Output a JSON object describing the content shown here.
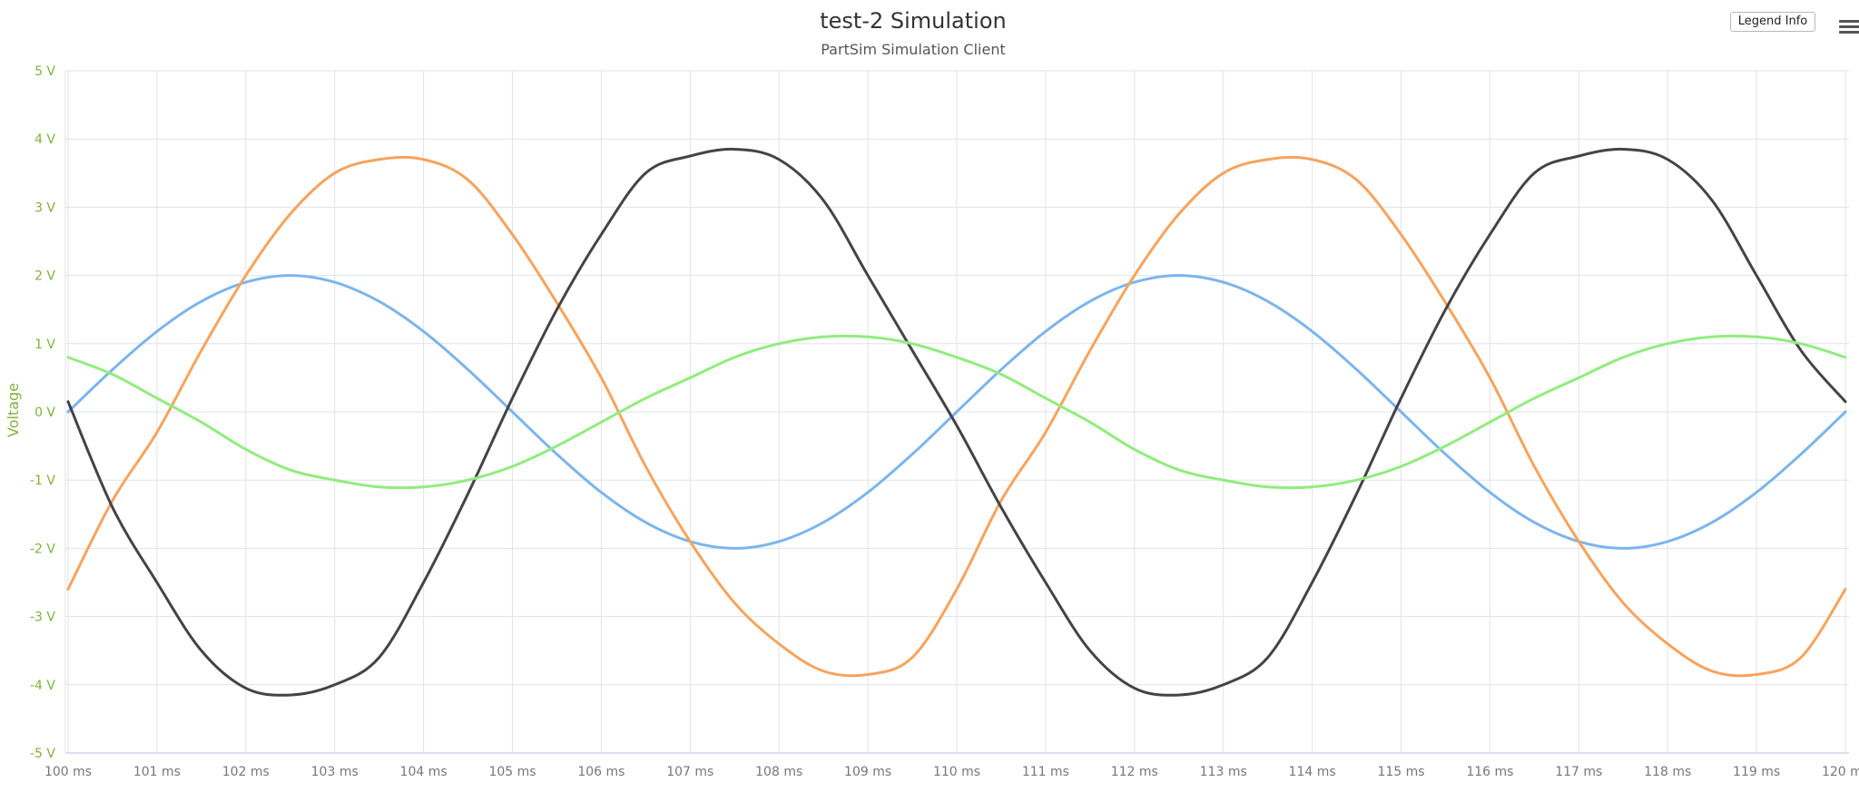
{
  "chart_data": {
    "type": "line",
    "title": "test-2 Simulation",
    "subtitle": "PartSim Simulation Client",
    "xlabel": "",
    "ylabel": "Voltage",
    "x_unit": "ms",
    "y_unit": "V",
    "xlim": [
      100,
      120
    ],
    "ylim": [
      -5,
      5
    ],
    "x_ticks": [
      "100 ms",
      "101 ms",
      "102 ms",
      "103 ms",
      "104 ms",
      "105 ms",
      "106 ms",
      "107 ms",
      "108 ms",
      "109 ms",
      "110 ms",
      "111 ms",
      "112 ms",
      "113 ms",
      "114 ms",
      "115 ms",
      "116 ms",
      "117 ms",
      "118 ms",
      "119 ms",
      "120 ms"
    ],
    "y_ticks": [
      "5 V",
      "4 V",
      "3 V",
      "2 V",
      "1 V",
      "0 V",
      "-1 V",
      "-2 V",
      "-3 V",
      "-4 V",
      "-5 V"
    ],
    "grid": true,
    "legend": "none",
    "x": [
      100,
      100.5,
      101,
      101.5,
      102,
      102.5,
      103,
      103.5,
      104,
      104.5,
      105,
      105.5,
      106,
      106.5,
      107,
      107.5,
      108,
      108.5,
      109,
      109.5,
      110,
      110.5,
      111,
      111.5,
      112,
      112.5,
      113,
      113.5,
      114,
      114.5,
      115,
      115.5,
      116,
      116.5,
      117,
      117.5,
      118,
      118.5,
      119,
      119.5,
      120
    ],
    "series": [
      {
        "color": "#7cb5ec",
        "values": [
          0.0,
          0.62,
          1.18,
          1.62,
          1.9,
          2.0,
          1.9,
          1.62,
          1.18,
          0.62,
          0.0,
          -0.62,
          -1.18,
          -1.62,
          -1.9,
          -2.0,
          -1.9,
          -1.62,
          -1.18,
          -0.62,
          0.0,
          0.62,
          1.18,
          1.62,
          1.9,
          2.0,
          1.9,
          1.62,
          1.18,
          0.62,
          0.0,
          -0.62,
          -1.18,
          -1.62,
          -1.9,
          -2.0,
          -1.9,
          -1.62,
          -1.18,
          -0.62,
          0.0
        ]
      },
      {
        "color": "#f7a35c",
        "values": [
          -2.6,
          -1.3,
          -0.3,
          0.9,
          2.0,
          2.9,
          3.5,
          3.7,
          3.7,
          3.4,
          2.6,
          1.6,
          0.5,
          -0.8,
          -1.9,
          -2.8,
          -3.4,
          -3.8,
          -3.85,
          -3.6,
          -2.6,
          -1.3,
          -0.3,
          0.9,
          2.0,
          2.9,
          3.5,
          3.7,
          3.7,
          3.4,
          2.6,
          1.6,
          0.5,
          -0.8,
          -1.9,
          -2.8,
          -3.4,
          -3.8,
          -3.85,
          -3.6,
          -2.6
        ]
      },
      {
        "color": "#434348",
        "values": [
          0.15,
          -1.4,
          -2.5,
          -3.5,
          -4.05,
          -4.15,
          -4.0,
          -3.6,
          -2.5,
          -1.2,
          0.2,
          1.5,
          2.6,
          3.5,
          3.75,
          3.85,
          3.7,
          3.1,
          2.0,
          0.9,
          -0.2,
          -1.4,
          -2.5,
          -3.5,
          -4.05,
          -4.15,
          -4.0,
          -3.6,
          -2.5,
          -1.2,
          0.2,
          1.5,
          2.6,
          3.5,
          3.75,
          3.85,
          3.7,
          3.1,
          2.0,
          0.9,
          0.15
        ]
      },
      {
        "color": "#90ed7d",
        "values": [
          0.8,
          0.55,
          0.2,
          -0.15,
          -0.55,
          -0.85,
          -1.0,
          -1.1,
          -1.1,
          -1.0,
          -0.8,
          -0.5,
          -0.15,
          0.2,
          0.5,
          0.8,
          1.0,
          1.1,
          1.1,
          1.0,
          0.8,
          0.55,
          0.2,
          -0.15,
          -0.55,
          -0.85,
          -1.0,
          -1.1,
          -1.1,
          -1.0,
          -0.8,
          -0.5,
          -0.15,
          0.2,
          0.5,
          0.8,
          1.0,
          1.1,
          1.1,
          1.0,
          0.8
        ]
      }
    ]
  },
  "controls": {
    "legend_button_label": "Legend Info",
    "menu_icon": "hamburger-menu-icon"
  },
  "colors": {
    "y_axis_label": "#7fb13a",
    "grid": "#dfe3ea"
  }
}
